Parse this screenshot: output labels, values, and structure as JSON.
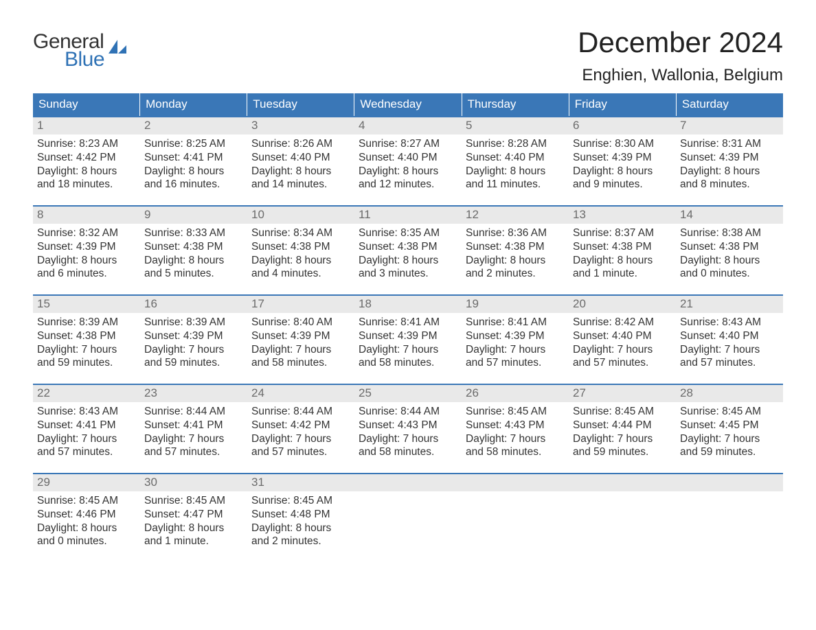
{
  "colors": {
    "header_blue": "#3a77b7",
    "logo_blue": "#2f72b5",
    "logo_gray": "#333333",
    "daynum_bg": "#e9e9e9",
    "daynum_text": "#6b6b6b",
    "body_text": "#333333",
    "page_bg": "#ffffff"
  },
  "logo": {
    "top": "General",
    "bottom": "Blue"
  },
  "title": "December 2024",
  "location": "Enghien, Wallonia, Belgium",
  "day_headers": [
    "Sunday",
    "Monday",
    "Tuesday",
    "Wednesday",
    "Thursday",
    "Friday",
    "Saturday"
  ],
  "weeks": [
    [
      {
        "n": "1",
        "sr": "Sunrise: 8:23 AM",
        "ss": "Sunset: 4:42 PM",
        "d1": "Daylight: 8 hours",
        "d2": "and 18 minutes."
      },
      {
        "n": "2",
        "sr": "Sunrise: 8:25 AM",
        "ss": "Sunset: 4:41 PM",
        "d1": "Daylight: 8 hours",
        "d2": "and 16 minutes."
      },
      {
        "n": "3",
        "sr": "Sunrise: 8:26 AM",
        "ss": "Sunset: 4:40 PM",
        "d1": "Daylight: 8 hours",
        "d2": "and 14 minutes."
      },
      {
        "n": "4",
        "sr": "Sunrise: 8:27 AM",
        "ss": "Sunset: 4:40 PM",
        "d1": "Daylight: 8 hours",
        "d2": "and 12 minutes."
      },
      {
        "n": "5",
        "sr": "Sunrise: 8:28 AM",
        "ss": "Sunset: 4:40 PM",
        "d1": "Daylight: 8 hours",
        "d2": "and 11 minutes."
      },
      {
        "n": "6",
        "sr": "Sunrise: 8:30 AM",
        "ss": "Sunset: 4:39 PM",
        "d1": "Daylight: 8 hours",
        "d2": "and 9 minutes."
      },
      {
        "n": "7",
        "sr": "Sunrise: 8:31 AM",
        "ss": "Sunset: 4:39 PM",
        "d1": "Daylight: 8 hours",
        "d2": "and 8 minutes."
      }
    ],
    [
      {
        "n": "8",
        "sr": "Sunrise: 8:32 AM",
        "ss": "Sunset: 4:39 PM",
        "d1": "Daylight: 8 hours",
        "d2": "and 6 minutes."
      },
      {
        "n": "9",
        "sr": "Sunrise: 8:33 AM",
        "ss": "Sunset: 4:38 PM",
        "d1": "Daylight: 8 hours",
        "d2": "and 5 minutes."
      },
      {
        "n": "10",
        "sr": "Sunrise: 8:34 AM",
        "ss": "Sunset: 4:38 PM",
        "d1": "Daylight: 8 hours",
        "d2": "and 4 minutes."
      },
      {
        "n": "11",
        "sr": "Sunrise: 8:35 AM",
        "ss": "Sunset: 4:38 PM",
        "d1": "Daylight: 8 hours",
        "d2": "and 3 minutes."
      },
      {
        "n": "12",
        "sr": "Sunrise: 8:36 AM",
        "ss": "Sunset: 4:38 PM",
        "d1": "Daylight: 8 hours",
        "d2": "and 2 minutes."
      },
      {
        "n": "13",
        "sr": "Sunrise: 8:37 AM",
        "ss": "Sunset: 4:38 PM",
        "d1": "Daylight: 8 hours",
        "d2": "and 1 minute."
      },
      {
        "n": "14",
        "sr": "Sunrise: 8:38 AM",
        "ss": "Sunset: 4:38 PM",
        "d1": "Daylight: 8 hours",
        "d2": "and 0 minutes."
      }
    ],
    [
      {
        "n": "15",
        "sr": "Sunrise: 8:39 AM",
        "ss": "Sunset: 4:38 PM",
        "d1": "Daylight: 7 hours",
        "d2": "and 59 minutes."
      },
      {
        "n": "16",
        "sr": "Sunrise: 8:39 AM",
        "ss": "Sunset: 4:39 PM",
        "d1": "Daylight: 7 hours",
        "d2": "and 59 minutes."
      },
      {
        "n": "17",
        "sr": "Sunrise: 8:40 AM",
        "ss": "Sunset: 4:39 PM",
        "d1": "Daylight: 7 hours",
        "d2": "and 58 minutes."
      },
      {
        "n": "18",
        "sr": "Sunrise: 8:41 AM",
        "ss": "Sunset: 4:39 PM",
        "d1": "Daylight: 7 hours",
        "d2": "and 58 minutes."
      },
      {
        "n": "19",
        "sr": "Sunrise: 8:41 AM",
        "ss": "Sunset: 4:39 PM",
        "d1": "Daylight: 7 hours",
        "d2": "and 57 minutes."
      },
      {
        "n": "20",
        "sr": "Sunrise: 8:42 AM",
        "ss": "Sunset: 4:40 PM",
        "d1": "Daylight: 7 hours",
        "d2": "and 57 minutes."
      },
      {
        "n": "21",
        "sr": "Sunrise: 8:43 AM",
        "ss": "Sunset: 4:40 PM",
        "d1": "Daylight: 7 hours",
        "d2": "and 57 minutes."
      }
    ],
    [
      {
        "n": "22",
        "sr": "Sunrise: 8:43 AM",
        "ss": "Sunset: 4:41 PM",
        "d1": "Daylight: 7 hours",
        "d2": "and 57 minutes."
      },
      {
        "n": "23",
        "sr": "Sunrise: 8:44 AM",
        "ss": "Sunset: 4:41 PM",
        "d1": "Daylight: 7 hours",
        "d2": "and 57 minutes."
      },
      {
        "n": "24",
        "sr": "Sunrise: 8:44 AM",
        "ss": "Sunset: 4:42 PM",
        "d1": "Daylight: 7 hours",
        "d2": "and 57 minutes."
      },
      {
        "n": "25",
        "sr": "Sunrise: 8:44 AM",
        "ss": "Sunset: 4:43 PM",
        "d1": "Daylight: 7 hours",
        "d2": "and 58 minutes."
      },
      {
        "n": "26",
        "sr": "Sunrise: 8:45 AM",
        "ss": "Sunset: 4:43 PM",
        "d1": "Daylight: 7 hours",
        "d2": "and 58 minutes."
      },
      {
        "n": "27",
        "sr": "Sunrise: 8:45 AM",
        "ss": "Sunset: 4:44 PM",
        "d1": "Daylight: 7 hours",
        "d2": "and 59 minutes."
      },
      {
        "n": "28",
        "sr": "Sunrise: 8:45 AM",
        "ss": "Sunset: 4:45 PM",
        "d1": "Daylight: 7 hours",
        "d2": "and 59 minutes."
      }
    ],
    [
      {
        "n": "29",
        "sr": "Sunrise: 8:45 AM",
        "ss": "Sunset: 4:46 PM",
        "d1": "Daylight: 8 hours",
        "d2": "and 0 minutes."
      },
      {
        "n": "30",
        "sr": "Sunrise: 8:45 AM",
        "ss": "Sunset: 4:47 PM",
        "d1": "Daylight: 8 hours",
        "d2": "and 1 minute."
      },
      {
        "n": "31",
        "sr": "Sunrise: 8:45 AM",
        "ss": "Sunset: 4:48 PM",
        "d1": "Daylight: 8 hours",
        "d2": "and 2 minutes."
      },
      null,
      null,
      null,
      null
    ]
  ]
}
